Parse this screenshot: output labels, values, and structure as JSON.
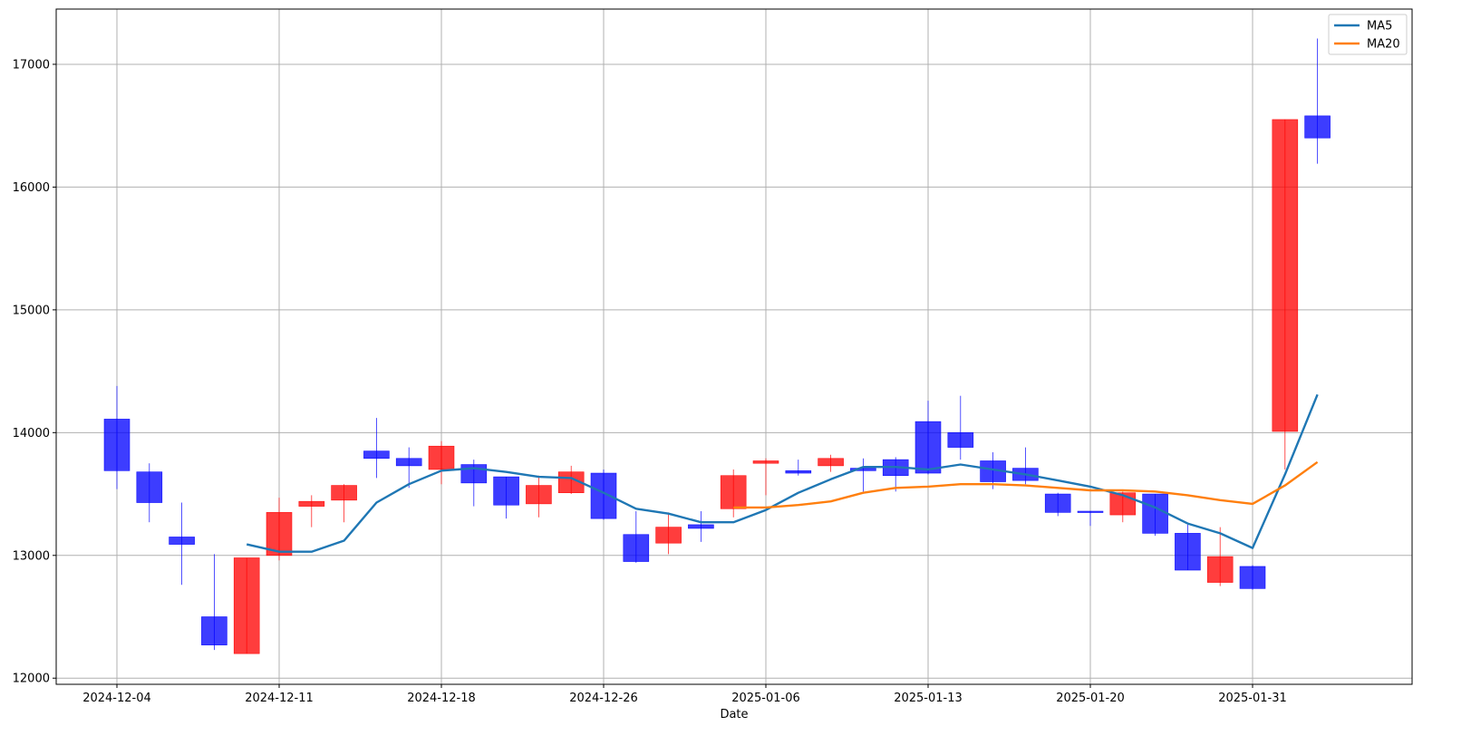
{
  "chart_data": {
    "type": "candlestick",
    "title": "",
    "xlabel": "Date",
    "ylabel": "",
    "ylim": [
      11950,
      17450
    ],
    "grid": true,
    "legend_position": "top-right",
    "up_color": "#ff0000",
    "down_color": "#0000ff",
    "y_ticks": [
      12000,
      13000,
      14000,
      15000,
      16000,
      17000
    ],
    "y_tick_labels": [
      "12000",
      "13000",
      "14000",
      "15000",
      "16000",
      "17000"
    ],
    "x_ticks": [
      {
        "index": 0,
        "label": "2024-12-04"
      },
      {
        "index": 5,
        "label": "2024-12-11"
      },
      {
        "index": 10,
        "label": "2024-12-18"
      },
      {
        "index": 15,
        "label": "2024-12-26"
      },
      {
        "index": 20,
        "label": "2025-01-06"
      },
      {
        "index": 25,
        "label": "2025-01-13"
      },
      {
        "index": 30,
        "label": "2025-01-20"
      },
      {
        "index": 35,
        "label": "2025-01-31"
      }
    ],
    "candles": [
      {
        "date": "2024-12-04",
        "open": 14110,
        "high": 14380,
        "low": 13540,
        "close": 13690
      },
      {
        "date": "2024-12-05",
        "open": 13680,
        "high": 13750,
        "low": 13270,
        "close": 13430
      },
      {
        "date": "2024-12-06",
        "open": 13150,
        "high": 13430,
        "low": 12760,
        "close": 13090
      },
      {
        "date": "2024-12-09",
        "open": 12500,
        "high": 13010,
        "low": 12230,
        "close": 12270
      },
      {
        "date": "2024-12-10",
        "open": 12200,
        "high": 12980,
        "low": 12200,
        "close": 12980
      },
      {
        "date": "2024-12-11",
        "open": 13000,
        "high": 13470,
        "low": 12960,
        "close": 13350
      },
      {
        "date": "2024-12-12",
        "open": 13400,
        "high": 13490,
        "low": 13230,
        "close": 13440
      },
      {
        "date": "2024-12-13",
        "open": 13450,
        "high": 13580,
        "low": 13270,
        "close": 13570
      },
      {
        "date": "2024-12-16",
        "open": 13850,
        "high": 14120,
        "low": 13630,
        "close": 13790
      },
      {
        "date": "2024-12-17",
        "open": 13790,
        "high": 13880,
        "low": 13550,
        "close": 13730
      },
      {
        "date": "2024-12-18",
        "open": 13700,
        "high": 13930,
        "low": 13580,
        "close": 13890
      },
      {
        "date": "2024-12-19",
        "open": 13740,
        "high": 13780,
        "low": 13400,
        "close": 13590
      },
      {
        "date": "2024-12-20",
        "open": 13640,
        "high": 13640,
        "low": 13300,
        "close": 13410
      },
      {
        "date": "2024-12-23",
        "open": 13420,
        "high": 13650,
        "low": 13310,
        "close": 13570
      },
      {
        "date": "2024-12-24",
        "open": 13510,
        "high": 13730,
        "low": 13500,
        "close": 13680
      },
      {
        "date": "2024-12-26",
        "open": 13670,
        "high": 13700,
        "low": 13290,
        "close": 13300
      },
      {
        "date": "2024-12-27",
        "open": 13170,
        "high": 13360,
        "low": 12940,
        "close": 12950
      },
      {
        "date": "2024-12-30",
        "open": 13100,
        "high": 13350,
        "low": 13010,
        "close": 13230
      },
      {
        "date": "2024-12-31",
        "open": 13250,
        "high": 13360,
        "low": 13110,
        "close": 13220
      },
      {
        "date": "2025-01-03",
        "open": 13380,
        "high": 13700,
        "low": 13310,
        "close": 13650
      },
      {
        "date": "2025-01-06",
        "open": 13750,
        "high": 13790,
        "low": 13490,
        "close": 13770
      },
      {
        "date": "2025-01-07",
        "open": 13690,
        "high": 13780,
        "low": 13650,
        "close": 13670
      },
      {
        "date": "2025-01-08",
        "open": 13730,
        "high": 13820,
        "low": 13680,
        "close": 13790
      },
      {
        "date": "2025-01-09",
        "open": 13710,
        "high": 13790,
        "low": 13520,
        "close": 13690
      },
      {
        "date": "2025-01-10",
        "open": 13780,
        "high": 13800,
        "low": 13520,
        "close": 13650
      },
      {
        "date": "2025-01-13",
        "open": 14090,
        "high": 14260,
        "low": 13660,
        "close": 13670
      },
      {
        "date": "2025-01-14",
        "open": 14000,
        "high": 14300,
        "low": 13780,
        "close": 13880
      },
      {
        "date": "2025-01-15",
        "open": 13770,
        "high": 13840,
        "low": 13540,
        "close": 13600
      },
      {
        "date": "2025-01-16",
        "open": 13710,
        "high": 13880,
        "low": 13580,
        "close": 13610
      },
      {
        "date": "2025-01-17",
        "open": 13500,
        "high": 13510,
        "low": 13320,
        "close": 13350
      },
      {
        "date": "2025-01-20",
        "open": 13360,
        "high": 13360,
        "low": 13240,
        "close": 13350
      },
      {
        "date": "2025-01-21",
        "open": 13330,
        "high": 13520,
        "low": 13270,
        "close": 13510
      },
      {
        "date": "2025-01-22",
        "open": 13500,
        "high": 13500,
        "low": 13160,
        "close": 13180
      },
      {
        "date": "2025-01-23",
        "open": 13180,
        "high": 13250,
        "low": 12880,
        "close": 12880
      },
      {
        "date": "2025-01-24",
        "open": 12780,
        "high": 13230,
        "low": 12750,
        "close": 12990
      },
      {
        "date": "2025-01-31",
        "open": 12910,
        "high": 12920,
        "low": 12720,
        "close": 12730
      },
      {
        "date": "2025-02-03",
        "open": 14010,
        "high": 16550,
        "low": 13700,
        "close": 16550
      },
      {
        "date": "2025-02-04",
        "open": 16580,
        "high": 17210,
        "low": 16190,
        "close": 16400
      }
    ],
    "series": [
      {
        "name": "MA5",
        "color": "#1f77b4",
        "start_index": 4,
        "values": [
          13090,
          13030,
          13030,
          13120,
          13430,
          13580,
          13690,
          13710,
          13680,
          13640,
          13630,
          13510,
          13380,
          13340,
          13270,
          13270,
          13370,
          13510,
          13620,
          13720,
          13720,
          13700,
          13740,
          13700,
          13660,
          13610,
          13560,
          13490,
          13390,
          13260,
          13180,
          13060,
          13660,
          14310
        ]
      },
      {
        "name": "MA20",
        "color": "#ff7f0e",
        "start_index": 19,
        "values": [
          13390,
          13390,
          13410,
          13440,
          13510,
          13550,
          13560,
          13580,
          13580,
          13570,
          13550,
          13530,
          13530,
          13520,
          13490,
          13450,
          13420,
          13570,
          13760
        ]
      }
    ]
  }
}
